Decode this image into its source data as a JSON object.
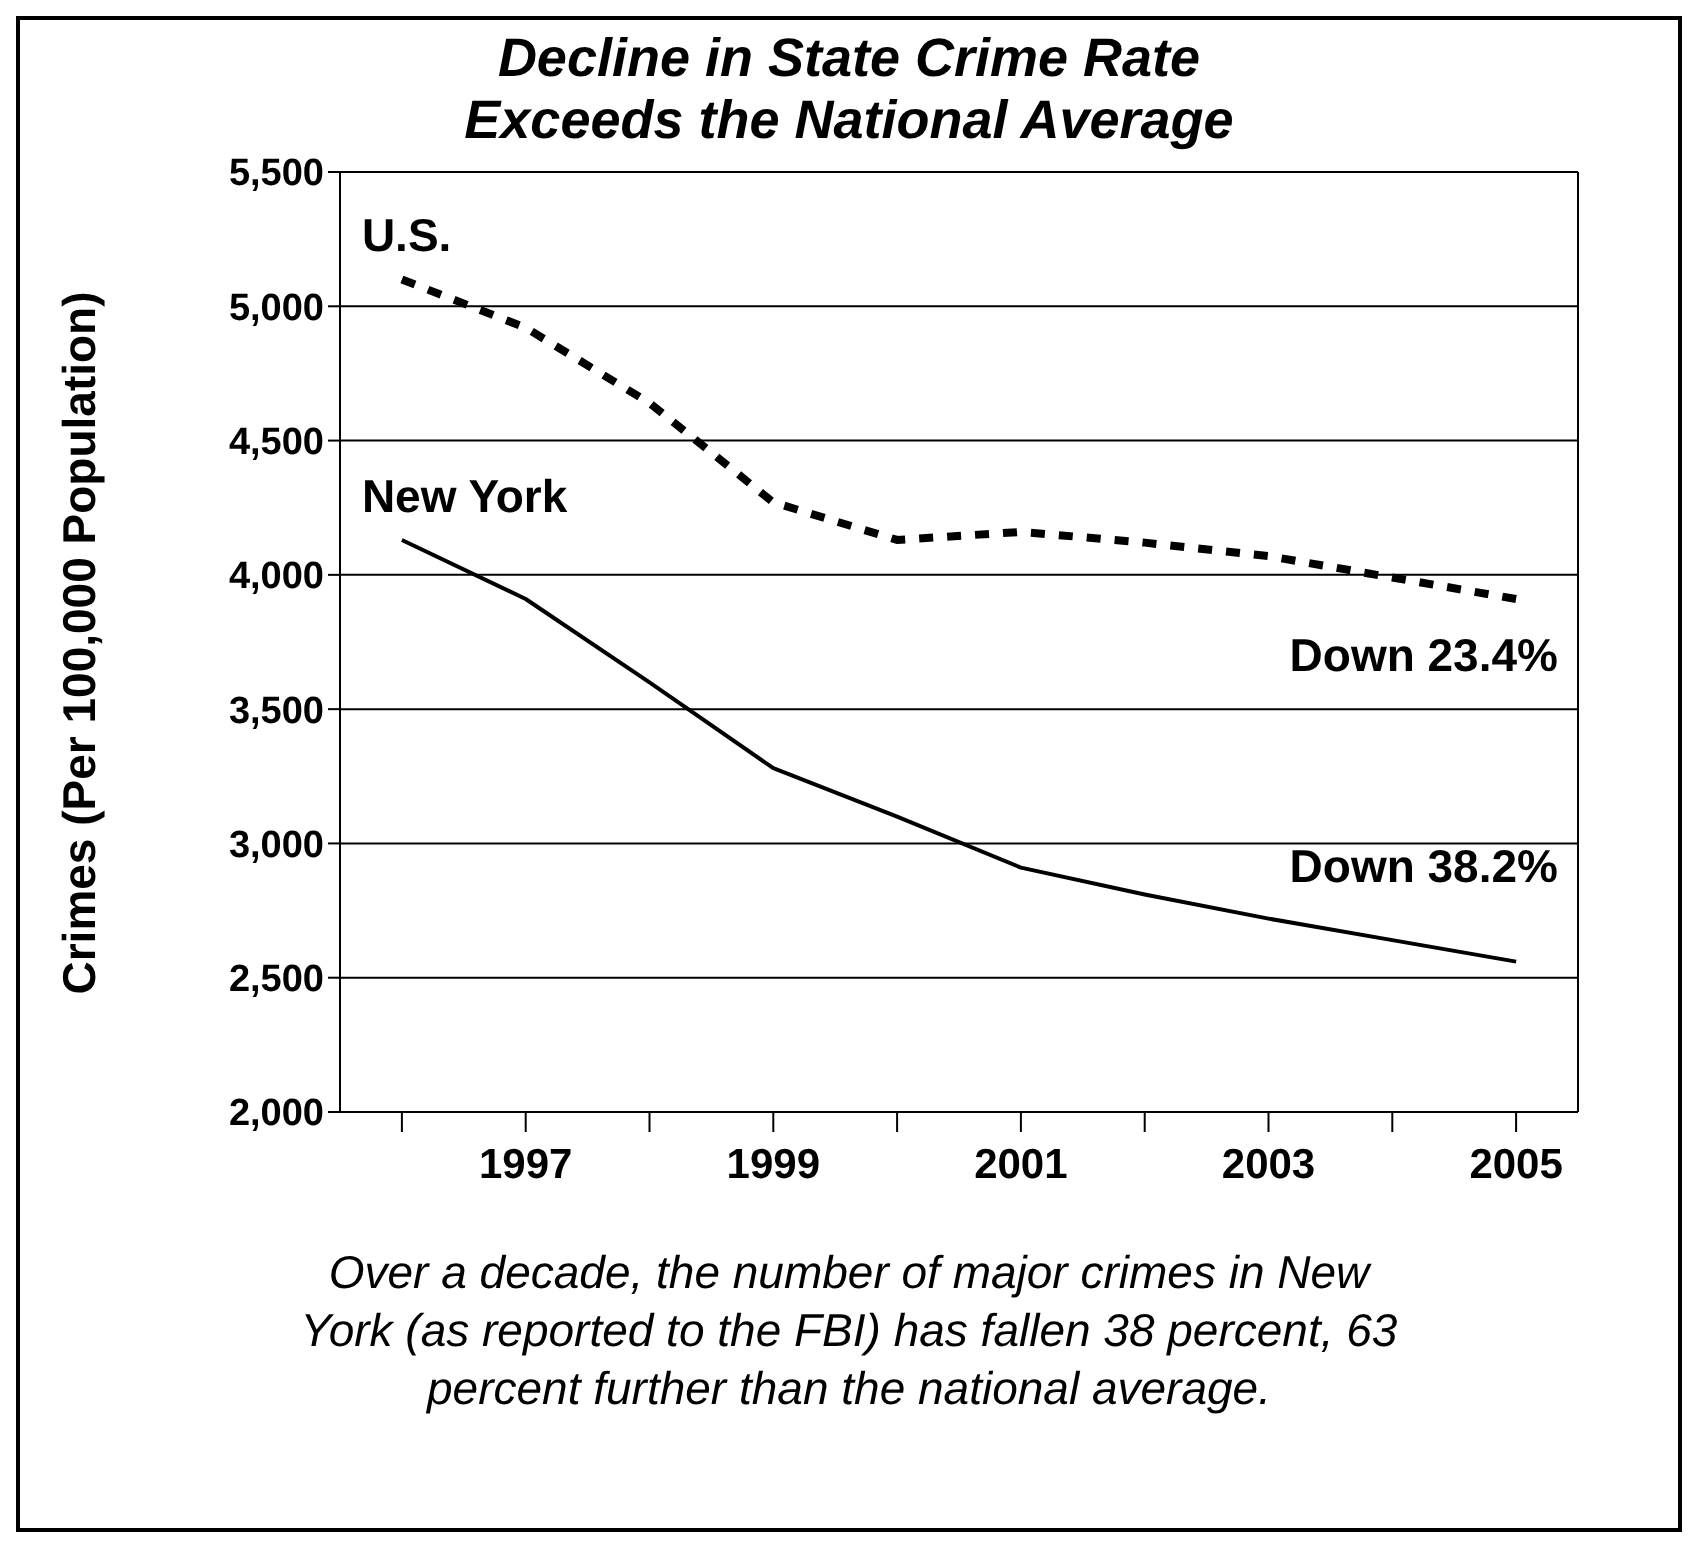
{
  "chart_data": {
    "type": "line",
    "title": "Decline in State Crime Rate Exceeds the National Average",
    "ylabel": "Crimes (Per 100,000 Population)",
    "categories": [
      null,
      "1997",
      null,
      "1999",
      null,
      "2001",
      null,
      "2003",
      null,
      "2005"
    ],
    "series": [
      {
        "name": "U.S.",
        "color": "#000000",
        "line_style": "dashed",
        "values": [
          5100,
          4920,
          4640,
          4270,
          4130,
          4160,
          4120,
          4070,
          3990,
          3910
        ]
      },
      {
        "name": "New York",
        "color": "#000000",
        "line_style": "solid",
        "values": [
          4130,
          3910,
          3600,
          3280,
          3100,
          2910,
          2810,
          2720,
          2640,
          2560
        ]
      }
    ],
    "ylim": [
      2000,
      5500
    ],
    "yticks": [
      {
        "value": 2000,
        "label": "2,000"
      },
      {
        "value": 2500,
        "label": "2,500"
      },
      {
        "value": 3000,
        "label": "3,000"
      },
      {
        "value": 3500,
        "label": "3,500"
      },
      {
        "value": 4000,
        "label": "4,000"
      },
      {
        "value": 4500,
        "label": "4,500"
      },
      {
        "value": 5000,
        "label": "5,000"
      },
      {
        "value": 5500,
        "label": "5,500"
      }
    ],
    "grid": "y",
    "marker": "none",
    "legend": false,
    "annotations": [
      {
        "text": "Down 23.4%",
        "x": "2005",
        "y": 3910
      },
      {
        "text": "Down 38.2%",
        "x": "2005",
        "y": 2560
      },
      "Over a decade, the number of major crimes in New York (as reported to the FBI) has fallen 38 percent, 63 percent further than the national average."
    ]
  }
}
